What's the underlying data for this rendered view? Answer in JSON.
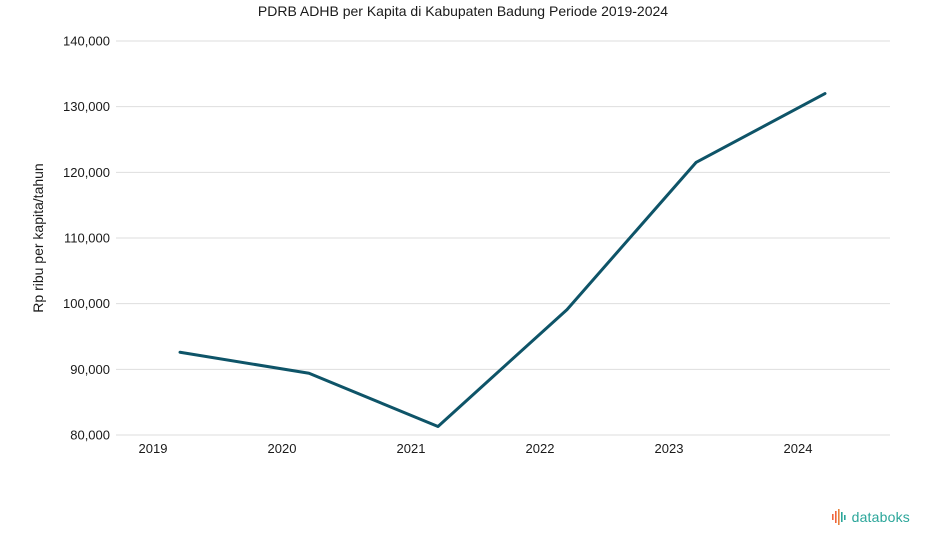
{
  "chart_data": {
    "type": "line",
    "title": "PDRB ADHB per Kapita di Kabupaten Badung Periode 2019-2024",
    "xlabel": "",
    "ylabel": "Rp ribu per kapita/tahun",
    "categories": [
      "2019",
      "2020",
      "2021",
      "2022",
      "2023",
      "2024"
    ],
    "series": [
      {
        "values": [
          92600,
          89400,
          81300,
          99100,
          121500,
          132000
        ],
        "color": "#0e5468"
      }
    ],
    "ylim": [
      80000,
      140000
    ],
    "yticks": [
      80000,
      90000,
      100000,
      110000,
      120000,
      130000,
      140000
    ],
    "ytick_labels": [
      "80,000",
      "90,000",
      "100,000",
      "110,000",
      "120,000",
      "130,000",
      "140,000"
    ],
    "grid": true,
    "legend": "none"
  },
  "branding": {
    "logo_text": "databoks",
    "logo_icon": "databoks-bars-icon",
    "logo_colors": [
      "#f0643c",
      "#2ba69a"
    ]
  }
}
